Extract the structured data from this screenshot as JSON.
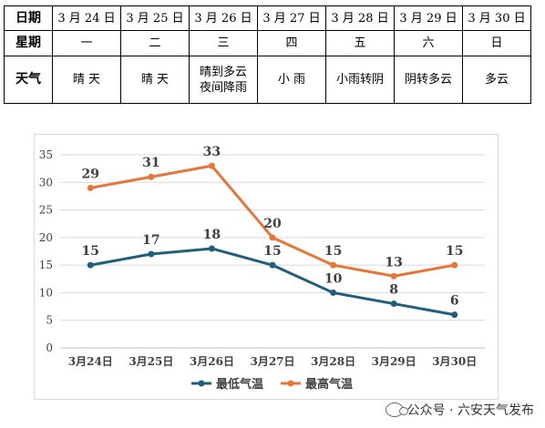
{
  "table": {
    "date_label": "日期",
    "week_label": "星期",
    "weather_label": "天气",
    "days": [
      {
        "date": "3 月 24 日",
        "week": "一",
        "weather": [
          "晴 天"
        ]
      },
      {
        "date": "3 月 25 日",
        "week": "二",
        "weather": [
          "晴 天"
        ]
      },
      {
        "date": "3 月 26 日",
        "week": "三",
        "weather": [
          "晴到多云",
          "夜间降雨"
        ]
      },
      {
        "date": "3 月 27 日",
        "week": "四",
        "weather": [
          "小 雨"
        ]
      },
      {
        "date": "3 月 28 日",
        "week": "五",
        "weather": [
          "小雨转阴"
        ]
      },
      {
        "date": "3 月 29 日",
        "week": "六",
        "weather": [
          "阴转多云"
        ]
      },
      {
        "date": "3 月 30 日",
        "week": "日",
        "weather": [
          "多云"
        ]
      }
    ]
  },
  "chart_data": {
    "type": "line",
    "categories": [
      "3月24日",
      "3月25日",
      "3月26日",
      "3月27日",
      "3月28日",
      "3月29日",
      "3月30日"
    ],
    "ylim": [
      0,
      35
    ],
    "yticks": [
      0,
      5,
      10,
      15,
      20,
      25,
      30,
      35
    ],
    "grid": true,
    "legend": "bottom",
    "series": [
      {
        "name": "最低气温",
        "values": [
          15,
          17,
          18,
          15,
          10,
          8,
          6
        ],
        "color": "#1f5f7a",
        "label_position": "above"
      },
      {
        "name": "最高气温",
        "values": [
          29,
          31,
          33,
          20,
          15,
          13,
          15
        ],
        "color": "#e4783a",
        "label_position": "above"
      }
    ]
  },
  "watermark": {
    "text": "公众号 · 六安天气发布",
    "icon": "wechat-icon"
  }
}
